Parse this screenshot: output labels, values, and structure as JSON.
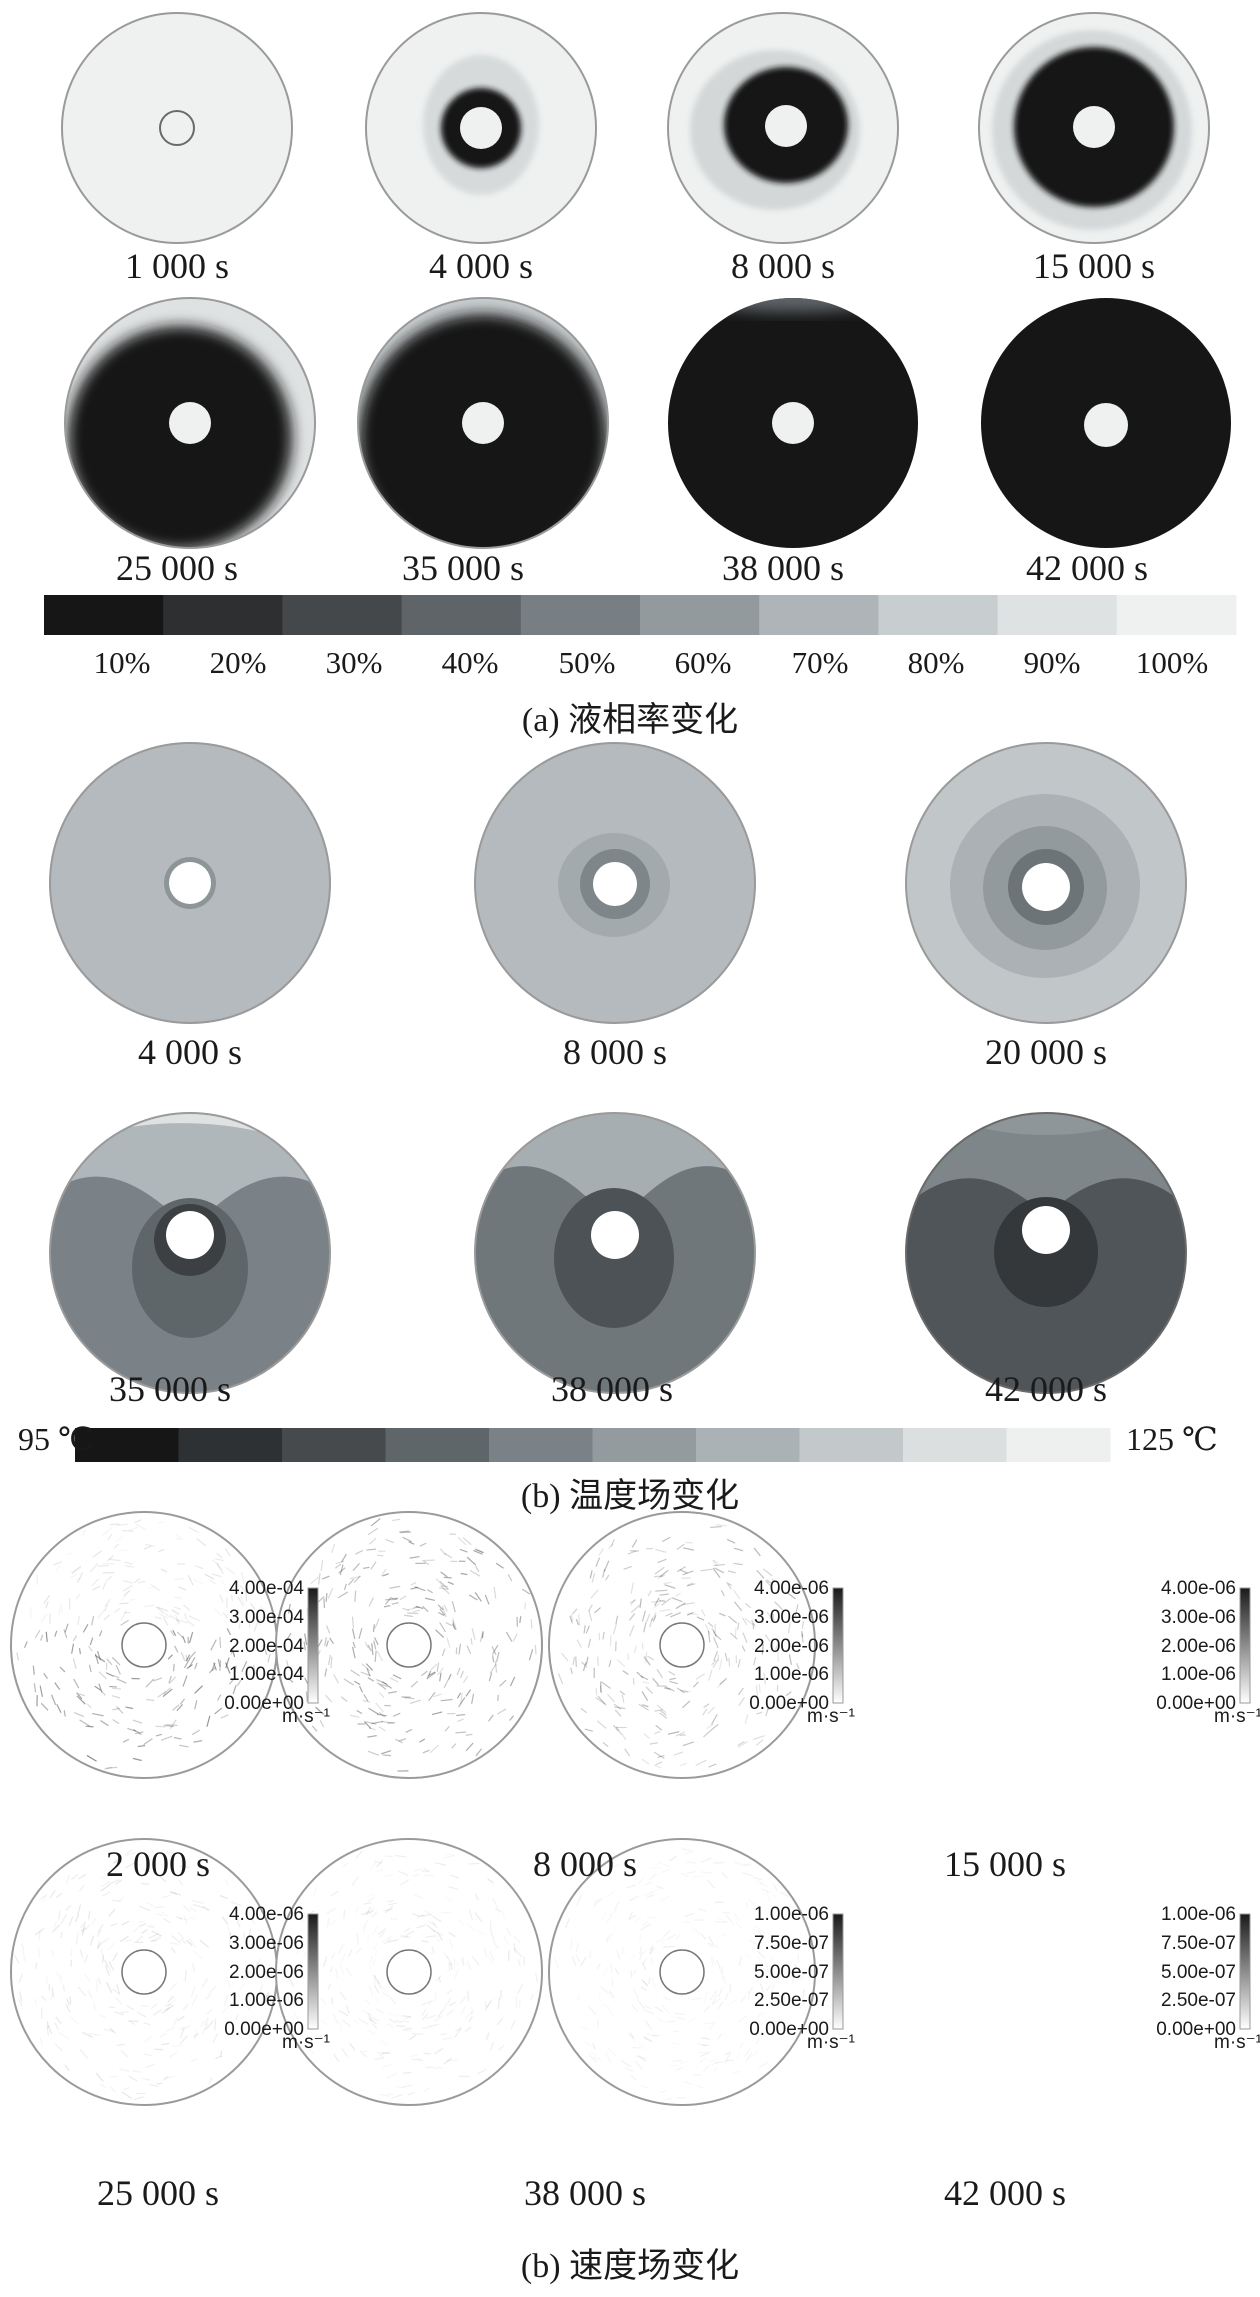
{
  "panel_a": {
    "caption": "(a) 液相率变化",
    "times": [
      "1 000 s",
      "4 000 s",
      "8 000 s",
      "15 000 s",
      "25 000 s",
      "35 000 s",
      "38 000 s",
      "42 000 s"
    ],
    "legend_ticks": [
      "10%",
      "20%",
      "30%",
      "40%",
      "50%",
      "60%",
      "70%",
      "80%",
      "90%",
      "100%"
    ],
    "legend_colors": [
      "#161616",
      "#2d2f31",
      "#45484b",
      "#5e6468",
      "#787f84",
      "#939a9e",
      "#aeb4b7",
      "#c8cdcf",
      "#dfe2e3",
      "#eff1f1"
    ]
  },
  "panel_b": {
    "caption": "(b) 温度场变化",
    "times": [
      "4 000 s",
      "8 000 s",
      "20 000 s",
      "35 000 s",
      "38 000 s",
      "42 000 s"
    ],
    "scale_min_label": "95 ℃",
    "scale_max_label": "125 ℃",
    "scale_colors": [
      "#161616",
      "#2e3133",
      "#464a4d",
      "#5f666a",
      "#7a8287",
      "#939b9f",
      "#abb2b5",
      "#c3c9cb",
      "#dbdfe0",
      "#eef0f0"
    ]
  },
  "panel_c": {
    "caption": "(b) 速度场变化",
    "times": [
      "2 000 s",
      "8 000 s",
      "15 000 s",
      "25 000 s",
      "38 000 s",
      "42 000 s"
    ],
    "unit": "m·s⁻¹",
    "scales": [
      [
        "4.00e-04",
        "3.00e-04",
        "2.00e-04",
        "1.00e-04",
        "0.00e+00"
      ],
      [
        "4.00e-06",
        "3.00e-06",
        "2.00e-06",
        "1.00e-06",
        "0.00e+00"
      ],
      [
        "4.00e-06",
        "3.00e-06",
        "2.00e-06",
        "1.00e-06",
        "0.00e+00"
      ],
      [
        "4.00e-06",
        "3.00e-06",
        "2.00e-06",
        "1.00e-06",
        "0.00e+00"
      ],
      [
        "1.00e-06",
        "7.50e-07",
        "5.00e-07",
        "2.50e-07",
        "0.00e+00"
      ],
      [
        "1.00e-06",
        "7.50e-07",
        "5.00e-07",
        "2.50e-07",
        "0.00e+00"
      ]
    ]
  }
}
